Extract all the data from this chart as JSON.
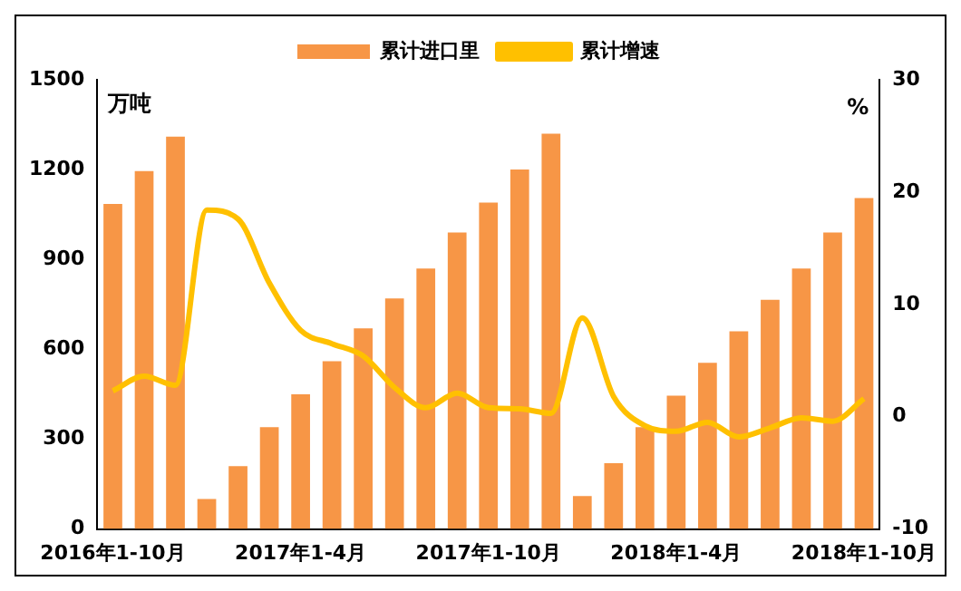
{
  "chart_data": {
    "type": "bar",
    "ylabel": "万吨",
    "y2label": "%",
    "legend": "top",
    "categories": [
      "2016年1-10月",
      null,
      null,
      null,
      null,
      null,
      "2017年1-4月",
      null,
      null,
      null,
      null,
      null,
      "2017年1-10月",
      null,
      null,
      null,
      null,
      null,
      "2018年1-4月",
      null,
      null,
      null,
      null,
      null,
      "2018年1-10月"
    ],
    "ylim": [
      0,
      1500
    ],
    "yticks": [
      0,
      300,
      600,
      900,
      1200,
      1500
    ],
    "y2lim": [
      -10,
      30
    ],
    "y2ticks": [
      -10,
      0,
      10,
      20,
      30
    ],
    "grid": false,
    "series": [
      {
        "name": "累计进口里",
        "color": "#f79646",
        "values": [
          1085,
          1195,
          1310,
          100,
          210,
          340,
          450,
          560,
          670,
          770,
          870,
          990,
          1090,
          1200,
          1320,
          110,
          220,
          340,
          445,
          555,
          660,
          765,
          870,
          990,
          1105
        ]
      },
      {
        "name": "累计增速",
        "type": "line",
        "axis": "y2",
        "color": "#ffc000",
        "values": [
          2.3,
          3.6,
          2.8,
          18.4,
          17.6,
          11.9,
          7.7,
          6.5,
          5.4,
          2.6,
          0.8,
          2.1,
          0.8,
          0.7,
          0.3,
          8.8,
          1.8,
          -0.8,
          -1.3,
          -0.5,
          -1.8,
          -1.0,
          -0.1,
          -0.4,
          1.6
        ]
      }
    ]
  }
}
